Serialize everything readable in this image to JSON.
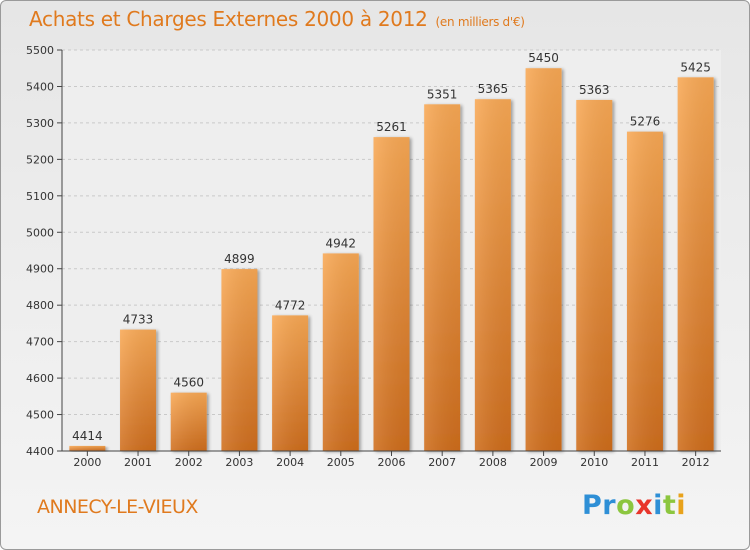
{
  "chart_data": {
    "type": "bar",
    "title": "Achats et Charges Externes 2000 à 2012",
    "subtitle": "(en milliers d'€)",
    "categories": [
      "2000",
      "2001",
      "2002",
      "2003",
      "2004",
      "2005",
      "2006",
      "2007",
      "2008",
      "2009",
      "2010",
      "2011",
      "2012"
    ],
    "values": [
      4414,
      4733,
      4560,
      4899,
      4772,
      4942,
      5261,
      5351,
      5365,
      5450,
      5363,
      5276,
      5425
    ],
    "ylim": [
      4400,
      5500
    ],
    "yticks": [
      4400,
      4500,
      4600,
      4700,
      4800,
      4900,
      5000,
      5100,
      5200,
      5300,
      5400,
      5500
    ],
    "grid": true,
    "bar_color": "#f5a04a",
    "xlabel": "",
    "ylabel": ""
  },
  "footer": {
    "city": "ANNECY-LE-VIEUX",
    "logo_letters": [
      "P",
      "r",
      "o",
      "x",
      "i",
      "t",
      "i"
    ]
  },
  "colors": {
    "accent": "#e07a1e",
    "logo": [
      "#2e8fd6",
      "#2e8fd6",
      "#8cc63f",
      "#e8352b",
      "#2e8fd6",
      "#8cc63f",
      "#e8a21b"
    ]
  }
}
